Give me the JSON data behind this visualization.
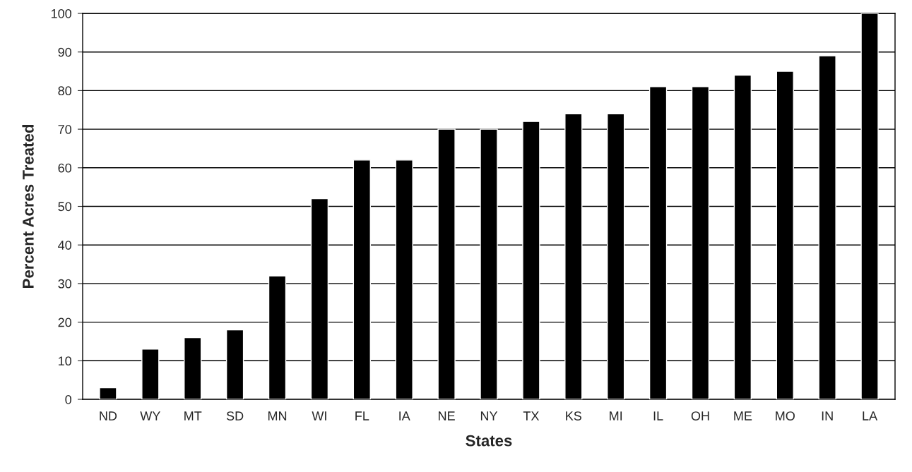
{
  "chart_data": {
    "type": "bar",
    "xlabel": "States",
    "ylabel": "Percent Acres Treated",
    "categories": [
      "ND",
      "WY",
      "MT",
      "SD",
      "MN",
      "WI",
      "FL",
      "IA",
      "NE",
      "NY",
      "TX",
      "KS",
      "MI",
      "IL",
      "OH",
      "ME",
      "MO",
      "IN",
      "LA"
    ],
    "values": [
      3,
      13,
      16,
      18,
      32,
      52,
      62,
      62,
      70,
      70,
      72,
      74,
      74,
      81,
      81,
      84,
      85,
      89,
      100
    ],
    "color": "#000000",
    "ylim": [
      0,
      100
    ],
    "yticks": [
      0,
      10,
      20,
      30,
      40,
      50,
      60,
      70,
      80,
      90,
      100
    ],
    "grid": "y"
  }
}
